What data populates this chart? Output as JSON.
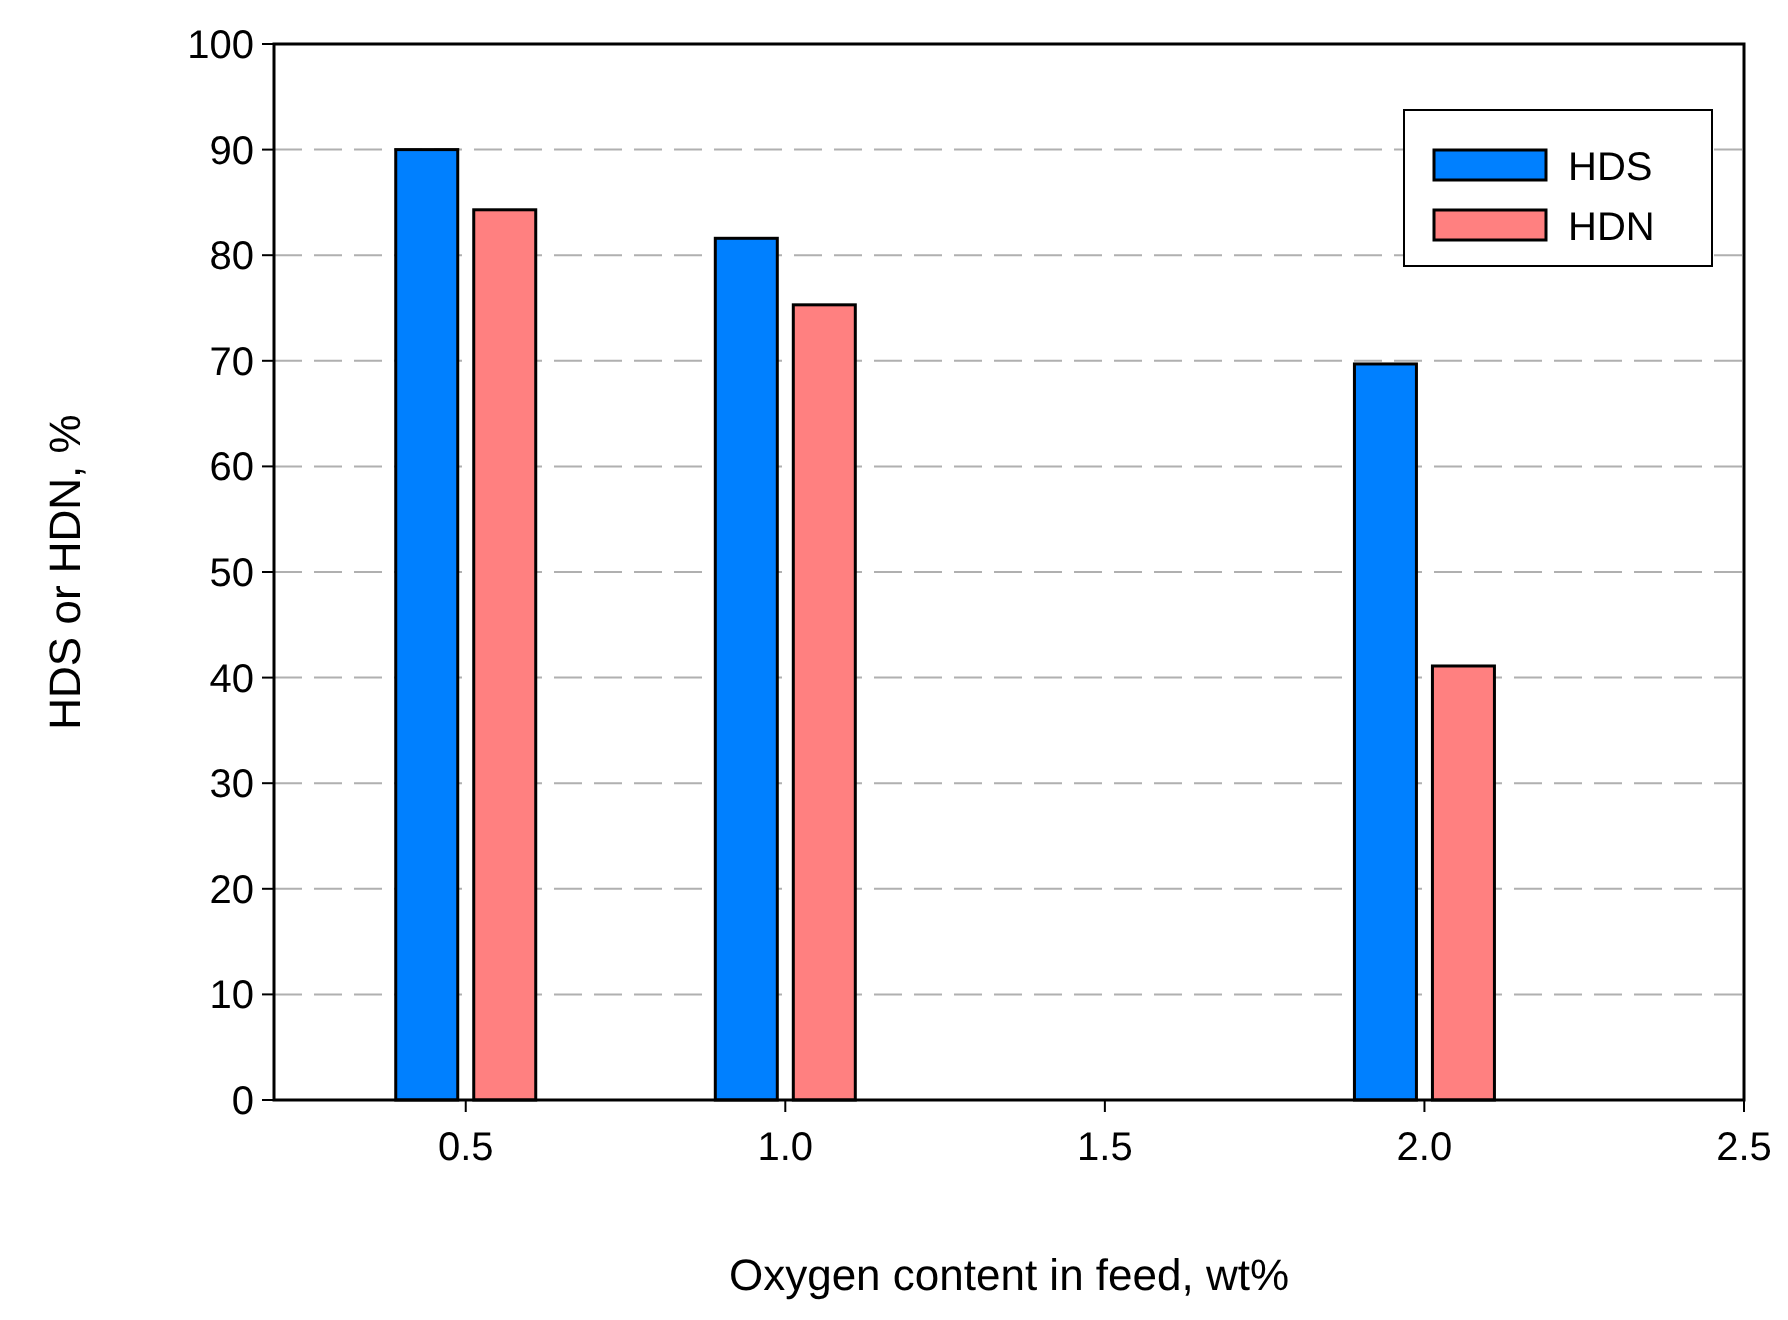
{
  "chart_data": {
    "type": "bar",
    "xlabel": "Oxygen content in feed, wt%",
    "ylabel": "HDS or HDN, %",
    "x": [
      0.5,
      1.0,
      2.0
    ],
    "series": [
      {
        "name": "HDS",
        "color": "#0080ff",
        "values": [
          90,
          81.6,
          69.7
        ]
      },
      {
        "name": "HDN",
        "color": "#ff8080",
        "values": [
          84.3,
          75.3,
          41.1
        ]
      }
    ],
    "xlim": [
      0.2,
      2.5
    ],
    "xticks": [
      {
        "value": 0.5,
        "label": "0.5"
      },
      {
        "value": 1.0,
        "label": "1.0"
      },
      {
        "value": 1.5,
        "label": "1.5"
      },
      {
        "value": 2.0,
        "label": "2.0"
      },
      {
        "value": 2.5,
        "label": "2.5"
      }
    ],
    "ylim": [
      0,
      100
    ],
    "yticks": [
      0,
      10,
      20,
      30,
      40,
      50,
      60,
      70,
      80,
      90,
      100
    ],
    "grid": "y",
    "legend": "top right"
  }
}
